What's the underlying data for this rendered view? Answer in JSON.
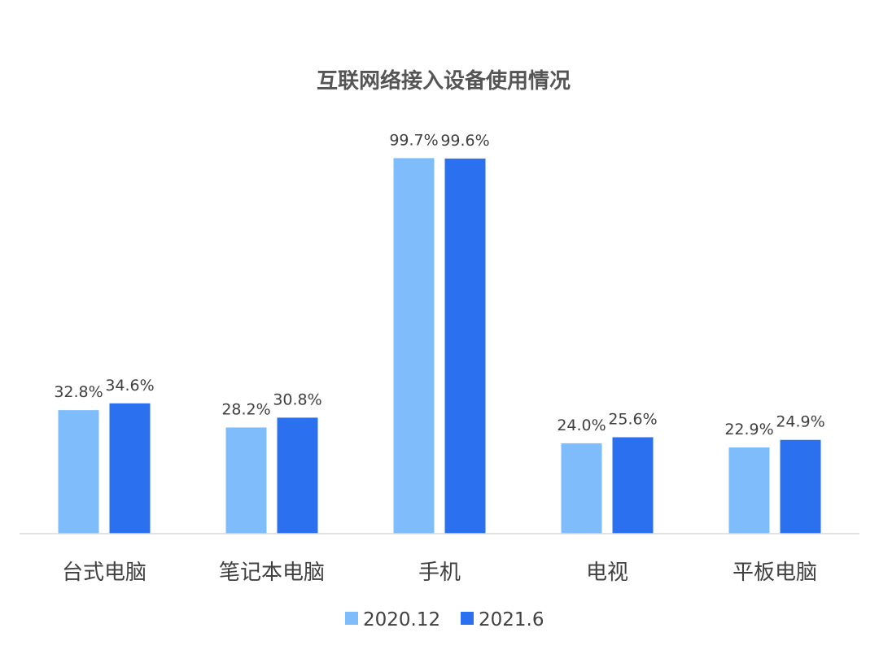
{
  "chart_data": {
    "type": "bar",
    "title": "互联网络接入设备使用情况",
    "xlabel": "",
    "ylabel": "",
    "ylim": [
      0,
      100
    ],
    "grid": false,
    "legend_position": "bottom",
    "categories": [
      "台式电脑",
      "笔记本电脑",
      "手机",
      "电视",
      "平板电脑"
    ],
    "series": [
      {
        "name": "2020.12",
        "values": [
          32.8,
          28.2,
          99.7,
          24.0,
          22.9
        ],
        "labels": [
          "32.8%",
          "28.2%",
          "99.7%",
          "24.0%",
          "22.9%"
        ],
        "color": "#7fbcfb"
      },
      {
        "name": "2021.6",
        "values": [
          34.6,
          30.8,
          99.6,
          25.6,
          24.9
        ],
        "labels": [
          "34.6%",
          "30.8%",
          "99.6%",
          "25.6%",
          "24.9%"
        ],
        "color": "#2b70ef"
      }
    ]
  }
}
